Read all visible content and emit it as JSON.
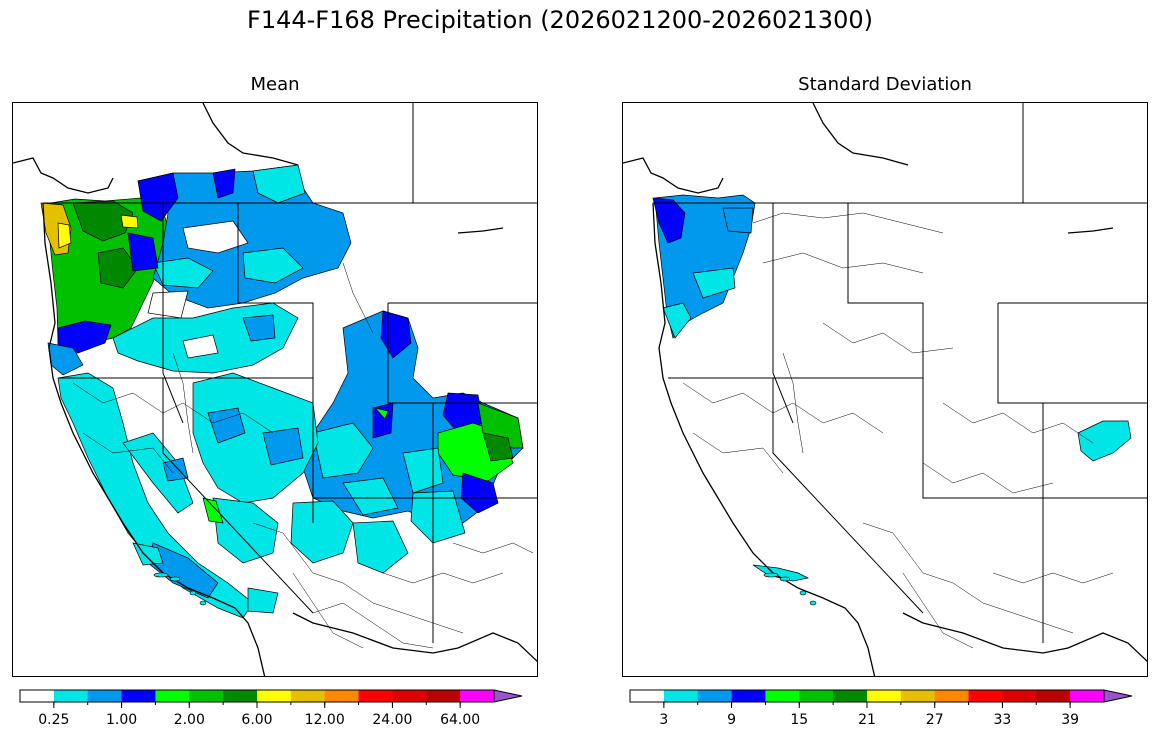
{
  "figure": {
    "title": "F144-F168 Precipitation (2026021200-2026021300)"
  },
  "panels": [
    {
      "id": "mean",
      "title": "Mean",
      "colorbar": {
        "colors": [
          "#ffffff",
          "#00e5e5",
          "#0099ee",
          "#0000ff",
          "#00ff00",
          "#00c000",
          "#008800",
          "#ffff00",
          "#e5c000",
          "#ff8800",
          "#ff0000",
          "#dd0000",
          "#bb0000",
          "#ff00ff",
          "#9955cc"
        ],
        "tick_labels": [
          "0.25",
          "1.00",
          "2.00",
          "6.00",
          "12.00",
          "24.00",
          "64.00"
        ],
        "extend": "max"
      }
    },
    {
      "id": "std",
      "title": "Standard Deviation",
      "colorbar": {
        "colors": [
          "#ffffff",
          "#00e5e5",
          "#0099ee",
          "#0000ff",
          "#00ff00",
          "#00c000",
          "#008800",
          "#ffff00",
          "#e5c000",
          "#ff8800",
          "#ff0000",
          "#dd0000",
          "#bb0000",
          "#ff00ff",
          "#9955cc"
        ],
        "tick_labels": [
          "3",
          "9",
          "15",
          "21",
          "27",
          "33",
          "39"
        ],
        "extend": "max"
      }
    }
  ]
}
